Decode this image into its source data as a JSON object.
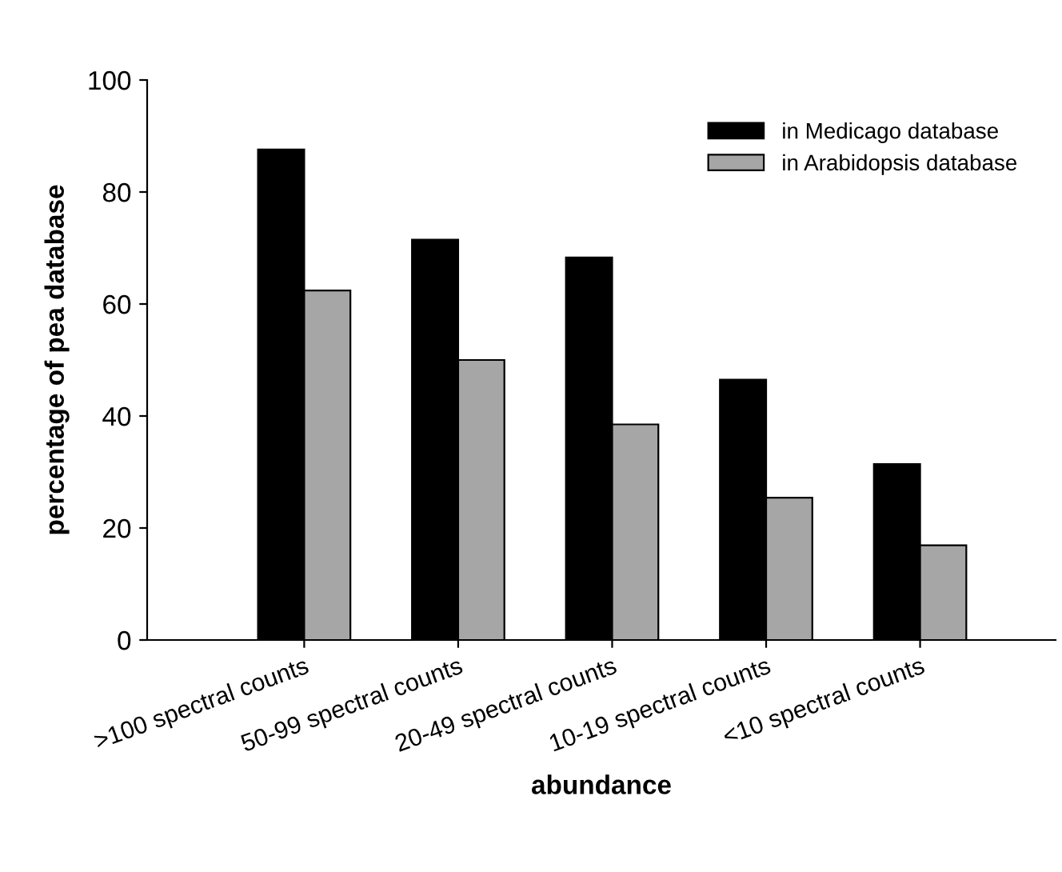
{
  "chart_data": {
    "type": "bar",
    "xlabel": "abundance",
    "ylabel": "percentage of pea database",
    "categories": [
      ">100 spectral counts",
      "50-99 spectral counts",
      "20-49 spectral counts",
      "10-19 spectral counts",
      "<10 spectral counts"
    ],
    "series": [
      {
        "name": "in Medicago database",
        "color": "#000000",
        "values": [
          87.6,
          71.5,
          68.3,
          46.5,
          31.4
        ]
      },
      {
        "name": "in Arabidopsis database",
        "color": "#a6a6a6",
        "values": [
          62.4,
          50.0,
          38.5,
          25.4,
          16.9
        ]
      }
    ],
    "ylim": [
      0,
      100
    ],
    "yticks": [
      0,
      20,
      40,
      60,
      80,
      100
    ],
    "legend": "top right",
    "grid": false
  }
}
